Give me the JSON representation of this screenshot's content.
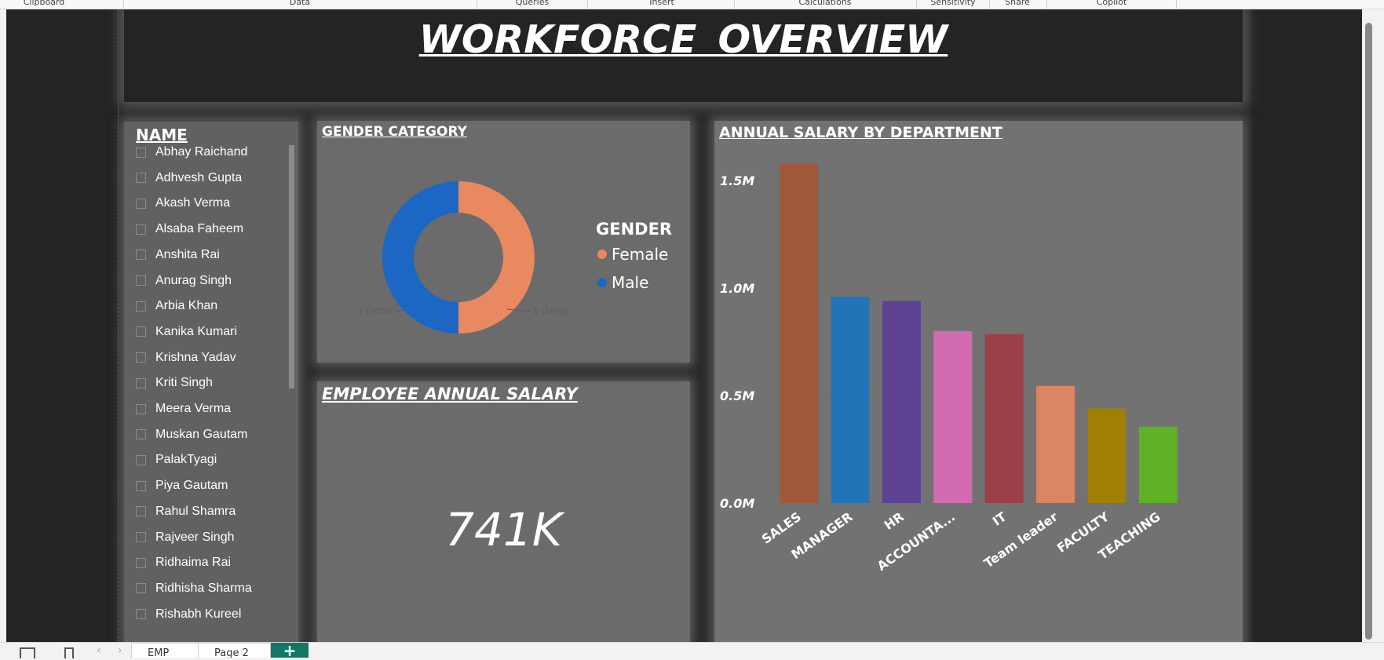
{
  "ribbon": {
    "groups": [
      "Clipboard",
      "Data",
      "Queries",
      "Insert",
      "Calculations",
      "Sensitivity",
      "Share",
      "Copilot"
    ]
  },
  "report": {
    "title": "WORKFORCE  OVERVIEW",
    "name_slicer": {
      "header": "NAME",
      "items": [
        "Abhay Raichand",
        "Adhvesh Gupta",
        "Akash Verma",
        "Alsaba Faheem",
        "Anshita Rai",
        "Anurag Singh",
        "Arbia Khan",
        "Kanika Kumari",
        "Krishna Yadav",
        "Kriti Singh",
        "Meera Verma",
        "Muskan Gautam",
        "PalakTyagi",
        "Piya Gautam",
        "Rahul Shamra",
        "Rajveer Singh",
        "Ridhaima Rai",
        "Ridhisha Sharma",
        "Rishabh Kureel"
      ]
    },
    "gender": {
      "title": "GENDER CATEGORY",
      "legend_title": "GENDER",
      "legend": [
        "Female",
        "Male"
      ],
      "slice_labels": [
        "1 (50%)",
        "1 (50%)"
      ],
      "colors": {
        "female": "#E8895F",
        "male": "#1C67C3"
      }
    },
    "employee_salary": {
      "title": "EMPLOYEE ANNUAL SALARY",
      "value": "741K"
    },
    "dept_chart": {
      "title": "ANNUAL SALARY BY DEPARTMENT"
    }
  },
  "tabs": [
    "EMP",
    "Page 2"
  ],
  "add_tab_label": "+",
  "chart_data": [
    {
      "type": "pie",
      "title": "GENDER CATEGORY",
      "categories": [
        "Female",
        "Male"
      ],
      "values": [
        1,
        1
      ],
      "data_labels": [
        "1 (50%)",
        "1 (50%)"
      ],
      "legend_title": "GENDER",
      "legend_placement": "right",
      "donut": true,
      "colors": [
        "#E8895F",
        "#1C67C3"
      ]
    },
    {
      "type": "bar",
      "title": "ANNUAL SALARY BY DEPARTMENT",
      "categories": [
        "SALES",
        "MANAGER",
        "HR",
        "ACCOUNTA...",
        "IT",
        "Team leader",
        "FACULTY",
        "TEACHING"
      ],
      "values": [
        1580000,
        960000,
        940000,
        800000,
        785000,
        545000,
        440000,
        355000
      ],
      "colors": [
        "#A0573A",
        "#2274B8",
        "#5E4392",
        "#D36BB0",
        "#9C3F47",
        "#DB8562",
        "#A08002",
        "#5FB126"
      ],
      "ylim": [
        0,
        1650000
      ],
      "yticks": [
        0,
        500000,
        1000000,
        1500000
      ],
      "ytick_labels": [
        "0.0M",
        "0.5M",
        "1.0M",
        "1.5M"
      ],
      "grid": true,
      "xlabel": "",
      "ylabel": ""
    }
  ]
}
